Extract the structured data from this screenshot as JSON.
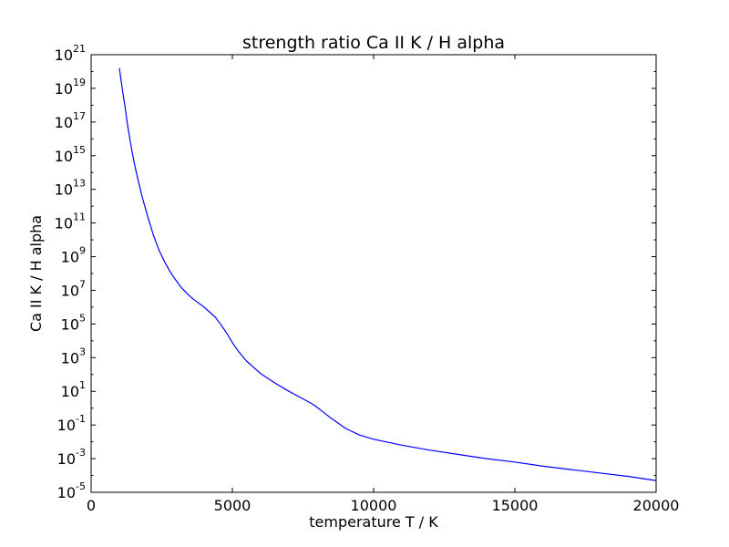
{
  "chart_data": {
    "type": "line",
    "title": "strength ratio Ca II K / H alpha",
    "xlabel": "temperature T / K",
    "ylabel": "Ca II K / H alpha",
    "xlim": [
      0,
      20000
    ],
    "ylim_log10": [
      -5,
      21
    ],
    "yscale": "log",
    "grid": false,
    "x_ticks": [
      {
        "value": 0,
        "label": "0"
      },
      {
        "value": 5000,
        "label": "5000"
      },
      {
        "value": 10000,
        "label": "10000"
      },
      {
        "value": 15000,
        "label": "15000"
      },
      {
        "value": 20000,
        "label": "20000"
      }
    ],
    "y_ticks": [
      {
        "exp": -5,
        "base": "10",
        "sup": "-5"
      },
      {
        "exp": -3,
        "base": "10",
        "sup": "-3"
      },
      {
        "exp": -1,
        "base": "10",
        "sup": "-1"
      },
      {
        "exp": 1,
        "base": "10",
        "sup": "1"
      },
      {
        "exp": 3,
        "base": "10",
        "sup": "3"
      },
      {
        "exp": 5,
        "base": "10",
        "sup": "5"
      },
      {
        "exp": 7,
        "base": "10",
        "sup": "7"
      },
      {
        "exp": 9,
        "base": "10",
        "sup": "9"
      },
      {
        "exp": 11,
        "base": "10",
        "sup": "11"
      },
      {
        "exp": 13,
        "base": "10",
        "sup": "13"
      },
      {
        "exp": 15,
        "base": "10",
        "sup": "15"
      },
      {
        "exp": 17,
        "base": "10",
        "sup": "17"
      },
      {
        "exp": 19,
        "base": "10",
        "sup": "19"
      },
      {
        "exp": 21,
        "base": "10",
        "sup": "21"
      }
    ],
    "series": [
      {
        "color": "#0000ff",
        "x": [
          1000,
          1100,
          1200,
          1300,
          1400,
          1500,
          1600,
          1700,
          1800,
          2000,
          2200,
          2400,
          2600,
          2800,
          3000,
          3200,
          3400,
          3600,
          3800,
          4000,
          4200,
          4400,
          4600,
          4800,
          5000,
          5200,
          5500,
          6000,
          6500,
          7000,
          7500,
          7800,
          8000,
          8500,
          9000,
          9500,
          10000,
          11000,
          12000,
          13000,
          14000,
          15000,
          16000,
          17000,
          18000,
          19000,
          20000
        ],
        "y_log10": [
          20.2,
          19.0,
          17.9,
          16.7,
          15.7,
          14.8,
          14.0,
          13.3,
          12.6,
          11.4,
          10.3,
          9.4,
          8.7,
          8.1,
          7.6,
          7.15,
          6.8,
          6.5,
          6.25,
          6.0,
          5.7,
          5.4,
          4.95,
          4.45,
          3.9,
          3.4,
          2.8,
          2.05,
          1.5,
          1.0,
          0.55,
          0.28,
          0.05,
          -0.6,
          -1.2,
          -1.6,
          -1.85,
          -2.2,
          -2.5,
          -2.75,
          -3.0,
          -3.2,
          -3.45,
          -3.65,
          -3.85,
          -4.05,
          -4.3
        ]
      }
    ]
  }
}
